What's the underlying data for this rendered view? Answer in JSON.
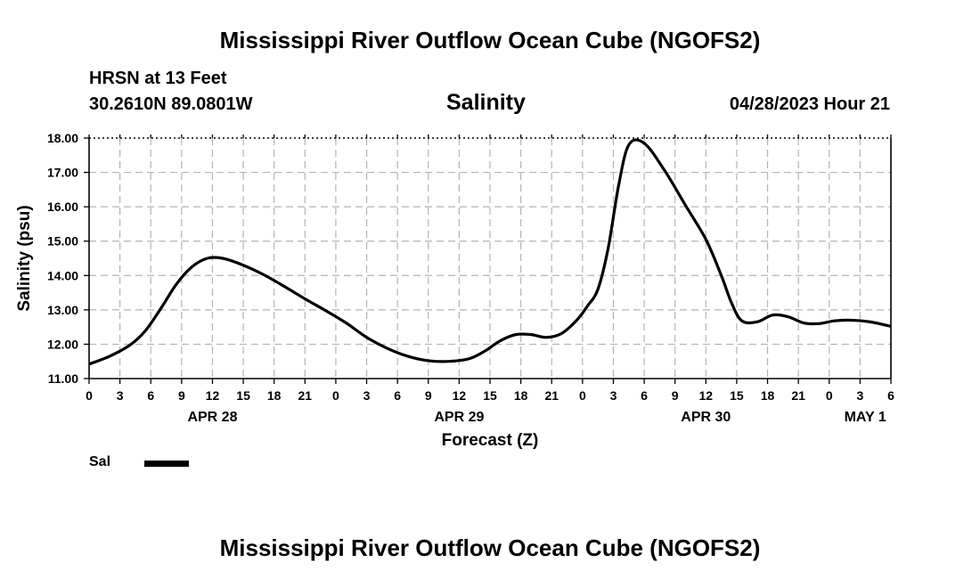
{
  "header": {
    "title_top": "Mississippi River Outflow Ocean Cube (NGOFS2)",
    "station": "HRSN at 13 Feet",
    "coords": "30.2610N  89.0801W",
    "datetime": "04/28/2023 Hour 21",
    "title_bottom": "Mississippi River Outflow Ocean Cube (NGOFS2)"
  },
  "legend": {
    "label": "Sal"
  },
  "colors": {
    "line": "#000000",
    "grid": "#b4b4b4"
  },
  "chart_data": {
    "type": "line",
    "title": "Salinity",
    "xlabel": "Forecast (Z)",
    "ylabel": "Salinity (psu)",
    "xlim": [
      0,
      78
    ],
    "ylim": [
      11.0,
      18.0
    ],
    "yticks": [
      11.0,
      12.0,
      13.0,
      14.0,
      15.0,
      16.0,
      17.0,
      18.0
    ],
    "ytick_labels": [
      "11.00",
      "12.00",
      "13.00",
      "14.00",
      "15.00",
      "16.00",
      "17.00",
      "18.00"
    ],
    "xticks": [
      0,
      3,
      6,
      9,
      12,
      15,
      18,
      21,
      24,
      27,
      30,
      33,
      36,
      39,
      42,
      45,
      48,
      51,
      54,
      57,
      60,
      63,
      66,
      69,
      72,
      75,
      78
    ],
    "xtick_labels": [
      "0",
      "3",
      "6",
      "9",
      "12",
      "15",
      "18",
      "21",
      "0",
      "3",
      "6",
      "9",
      "12",
      "15",
      "18",
      "21",
      "0",
      "3",
      "6",
      "9",
      "12",
      "15",
      "18",
      "21",
      "0",
      "3",
      "6"
    ],
    "day_labels": [
      {
        "x": 12,
        "label": "APR 28"
      },
      {
        "x": 36,
        "label": "APR 29"
      },
      {
        "x": 60,
        "label": "APR 30"
      },
      {
        "x": 75.5,
        "label": "MAY 1"
      }
    ],
    "grid": true,
    "series": [
      {
        "name": "Sal",
        "x": [
          0,
          2,
          4,
          5.5,
          7,
          8.5,
          10,
          11.5,
          13,
          15,
          17,
          19,
          21,
          23,
          25,
          27,
          29,
          31,
          33,
          35,
          37,
          38.5,
          40,
          41.5,
          43,
          44.5,
          46,
          47.5,
          48.5,
          49.5,
          50.5,
          51.5,
          52.5,
          54,
          56,
          58,
          60,
          61.5,
          62.5,
          63.5,
          65,
          66.5,
          68,
          69.5,
          71,
          72.5,
          74,
          76,
          78
        ],
        "y": [
          11.42,
          11.65,
          11.98,
          12.4,
          13.05,
          13.75,
          14.25,
          14.5,
          14.5,
          14.3,
          14.02,
          13.68,
          13.32,
          12.98,
          12.62,
          12.2,
          11.88,
          11.65,
          11.52,
          11.5,
          11.58,
          11.8,
          12.1,
          12.28,
          12.28,
          12.2,
          12.32,
          12.72,
          13.12,
          13.6,
          14.8,
          16.6,
          17.8,
          17.85,
          17.05,
          16.05,
          15.05,
          14.0,
          13.2,
          12.68,
          12.65,
          12.85,
          12.8,
          12.62,
          12.6,
          12.68,
          12.7,
          12.65,
          12.52
        ]
      }
    ]
  }
}
